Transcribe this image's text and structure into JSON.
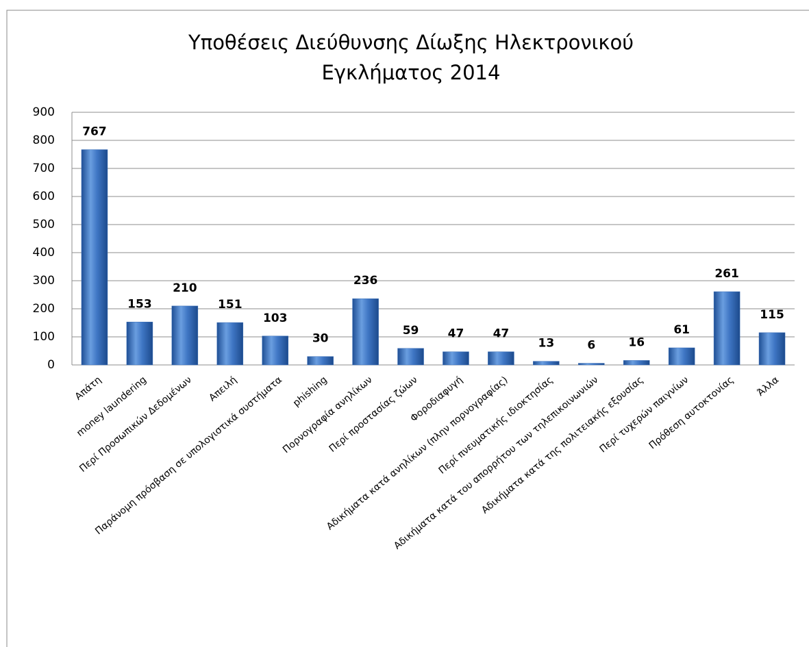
{
  "chart_data": {
    "type": "bar",
    "title": [
      "Υποθέσεις Διεύθυνσης Δίωξης Ηλεκτρονικού",
      "Εγκλήματος 2014"
    ],
    "categories": [
      "Απάτη",
      "money laundering",
      "Περί Προσωπικών Δεδομένων",
      "Απειλή",
      "Παράνομη πρόσβαση σε υπολογιστικά συστήματα",
      "phishing",
      "Πορνογραφία ανηλίκων",
      "Περί προστασίας ζώων",
      "Φοροδιαφυγή",
      "Αδικήματα κατά ανηλίκων (πλην πορνογραφίας)",
      "Περί πνευματικής ιδιοκτησίας",
      "Αδικήματα κατά του απορρήτου των τηλεπικοινωνιών",
      "Αδικήματα κατά της πολιτειακής εξουσίας",
      "Περί τυχερών παιγνίων",
      "Πρόθεση αυτοκτονίας",
      "Άλλα"
    ],
    "values": [
      767,
      153,
      210,
      151,
      103,
      30,
      236,
      59,
      47,
      47,
      13,
      6,
      16,
      61,
      261,
      115
    ],
    "color": "#3b6fb8",
    "ylim": [
      0,
      900
    ],
    "yticks": [
      0,
      100,
      200,
      300,
      400,
      500,
      600,
      700,
      800,
      900
    ],
    "grid": true
  }
}
